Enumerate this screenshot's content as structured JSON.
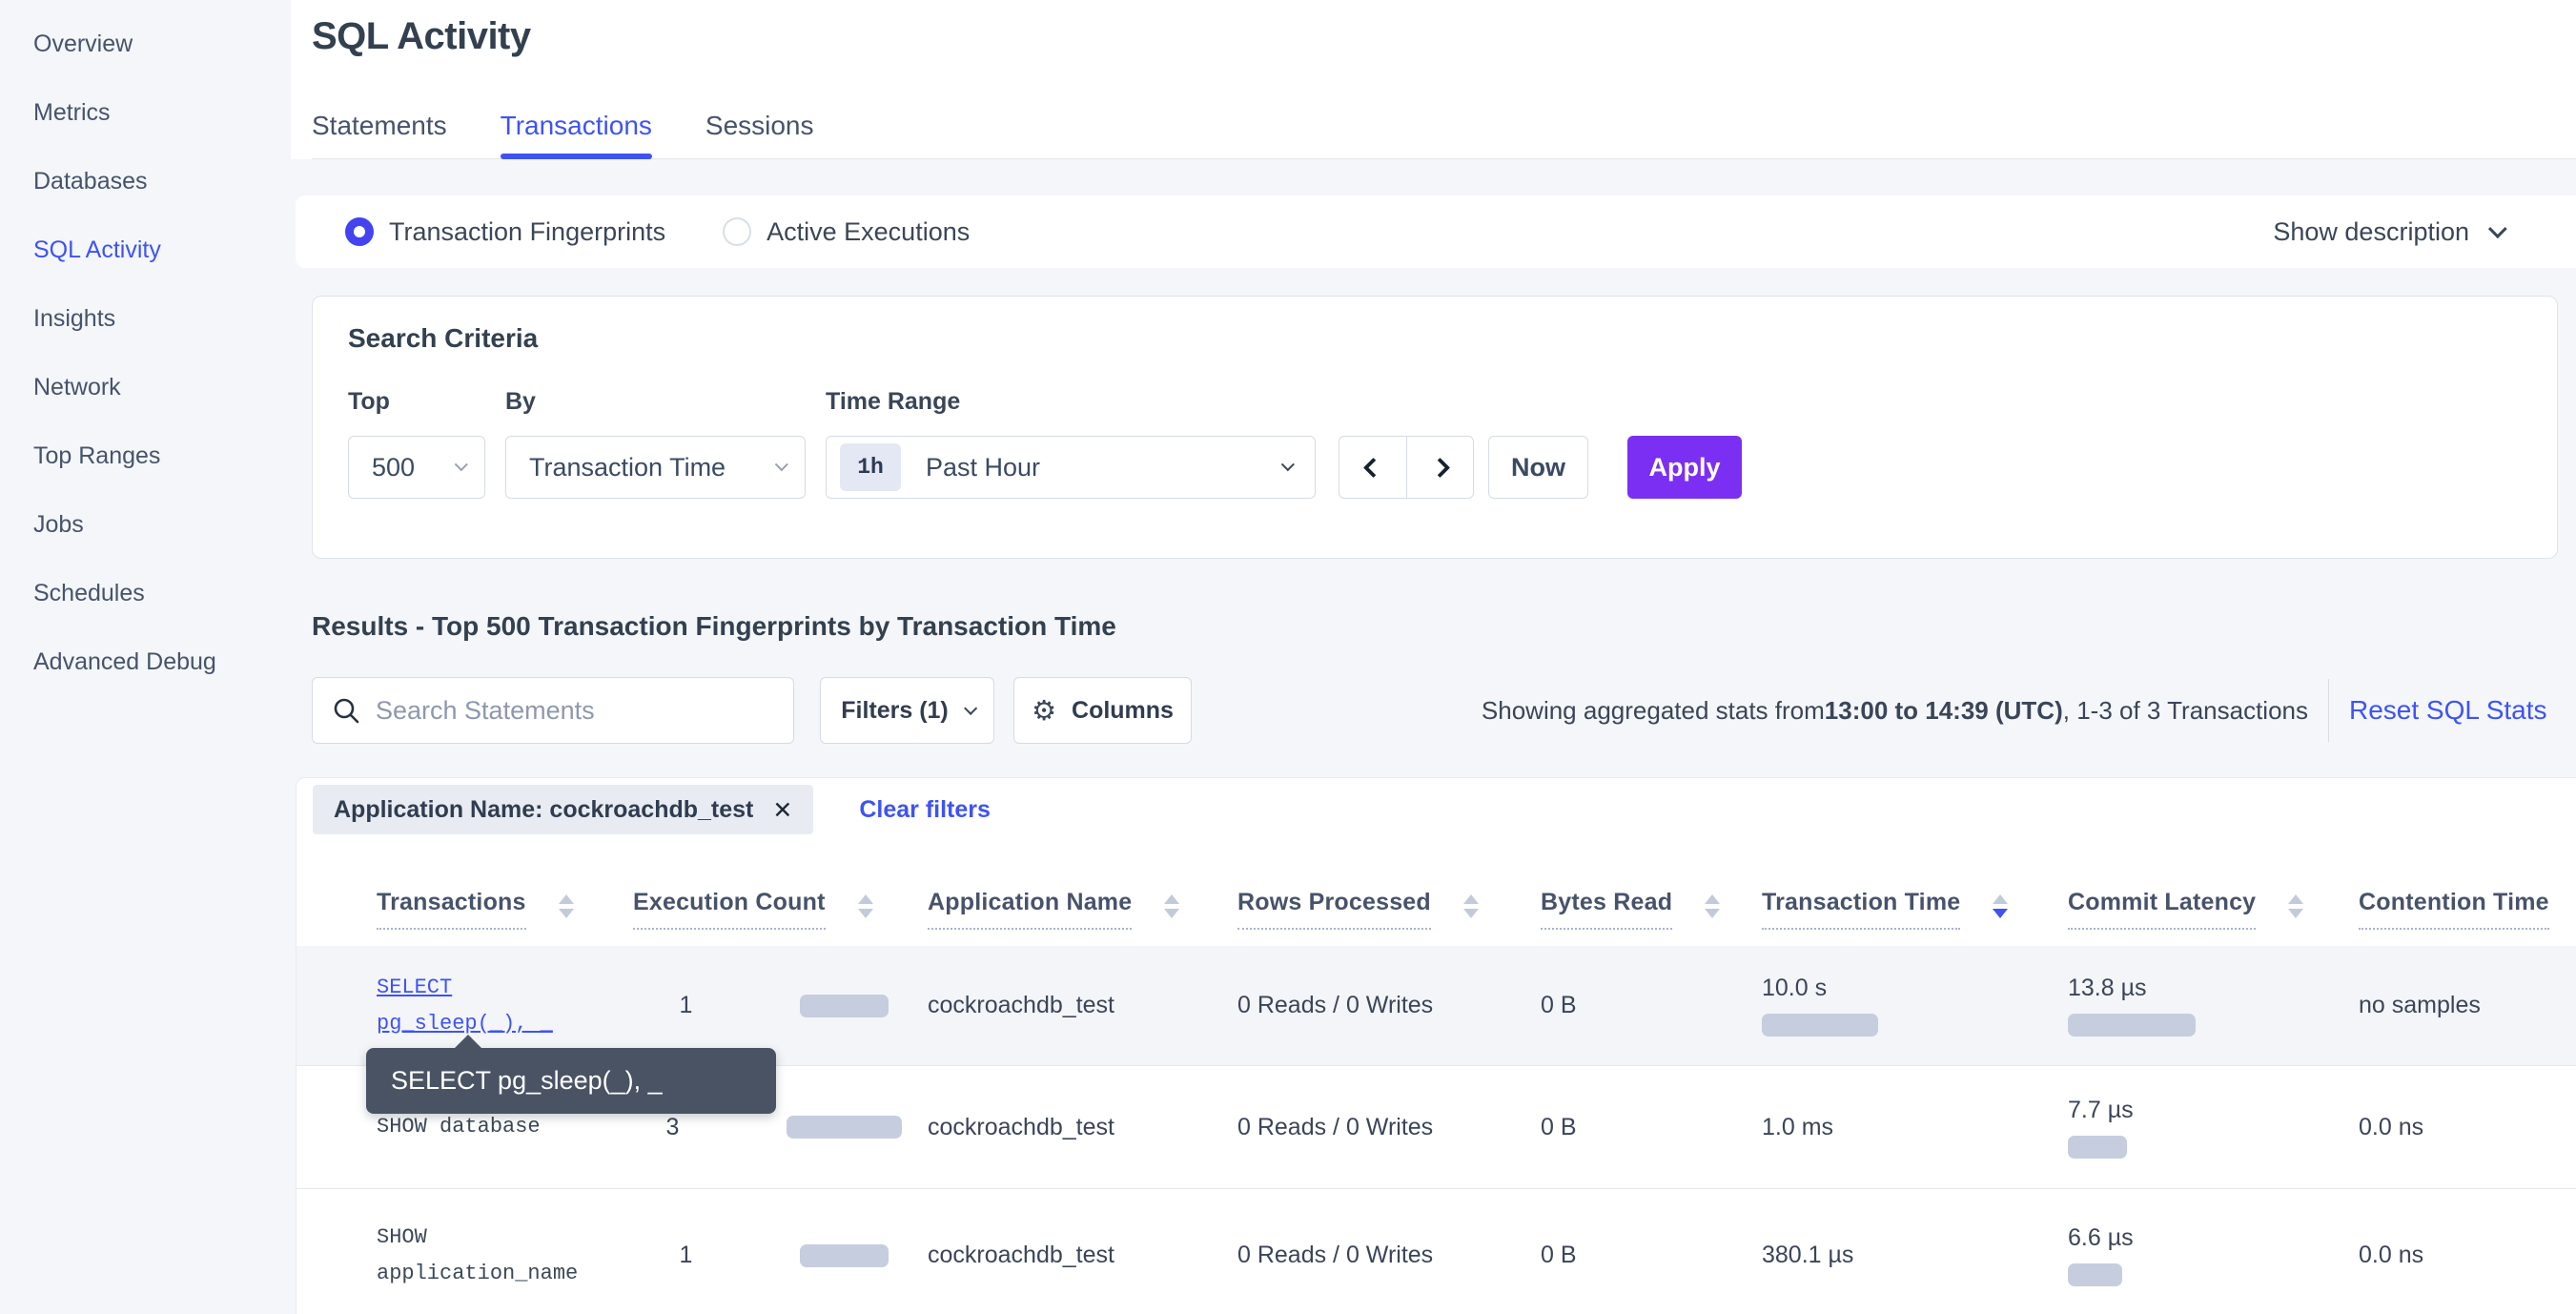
{
  "colors": {
    "accent": "#3e53f2",
    "purple": "#7b2ff2",
    "bar": "#c6cdde",
    "tooltip": "#4a5364"
  },
  "sidebar": {
    "items": [
      {
        "label": "Overview",
        "active": false
      },
      {
        "label": "Metrics",
        "active": false
      },
      {
        "label": "Databases",
        "active": false
      },
      {
        "label": "SQL Activity",
        "active": true
      },
      {
        "label": "Insights",
        "active": false
      },
      {
        "label": "Network",
        "active": false
      },
      {
        "label": "Top Ranges",
        "active": false
      },
      {
        "label": "Jobs",
        "active": false
      },
      {
        "label": "Schedules",
        "active": false
      },
      {
        "label": "Advanced Debug",
        "active": false
      }
    ]
  },
  "header": {
    "title": "SQL Activity",
    "tabs": [
      {
        "label": "Statements",
        "active": false
      },
      {
        "label": "Transactions",
        "active": true
      },
      {
        "label": "Sessions",
        "active": false
      }
    ]
  },
  "view_toggle": {
    "options": [
      {
        "label": "Transaction Fingerprints",
        "selected": true
      },
      {
        "label": "Active Executions",
        "selected": false
      }
    ],
    "show_description": "Show description"
  },
  "search_criteria": {
    "heading": "Search Criteria",
    "top": {
      "label": "Top",
      "value": "500"
    },
    "by": {
      "label": "By",
      "value": "Transaction Time"
    },
    "time_range": {
      "label": "Time Range",
      "badge": "1h",
      "value": "Past Hour"
    },
    "now_label": "Now",
    "apply_label": "Apply"
  },
  "results": {
    "heading": "Results - Top 500 Transaction Fingerprints by Transaction Time",
    "search_placeholder": "Search Statements",
    "filters_label": "Filters (1)",
    "columns_label": "Columns",
    "status_prefix": "Showing aggregated stats from ",
    "status_bold": "13:00 to 14:39 (UTC)",
    "status_suffix": ", 1-3 of 3 Transactions",
    "reset_label": "Reset SQL Stats",
    "filter_chip": "Application Name: cockroachdb_test",
    "clear_filters": "Clear filters"
  },
  "tooltip": {
    "text": "SELECT pg_sleep(_), _"
  },
  "table": {
    "columns": [
      {
        "label": "Transactions",
        "sort": "none"
      },
      {
        "label": "Execution Count",
        "sort": "none"
      },
      {
        "label": "Application Name",
        "sort": "none"
      },
      {
        "label": "Rows Processed",
        "sort": "none"
      },
      {
        "label": "Bytes Read",
        "sort": "none"
      },
      {
        "label": "Transaction Time",
        "sort": "desc"
      },
      {
        "label": "Commit Latency",
        "sort": "none"
      },
      {
        "label": "Contention Time",
        "sort": "none"
      }
    ],
    "rows": [
      {
        "statement_lines": [
          "SELECT",
          "pg_sleep(_), _"
        ],
        "is_link": true,
        "highlighted": true,
        "height": 126,
        "execution_count": "1",
        "exec_bar": 93,
        "application_name": "cockroachdb_test",
        "rows_processed": "0 Reads / 0 Writes",
        "bytes_read": "0 B",
        "transaction_time": "10.0 s",
        "txn_bar": 122,
        "commit_latency": "13.8 µs",
        "commit_bar": 134,
        "contention_time": "no samples"
      },
      {
        "statement_lines": [
          "SHOW database"
        ],
        "is_link": false,
        "highlighted": false,
        "height": 129,
        "execution_count": "3",
        "exec_bar": 121,
        "application_name": "cockroachdb_test",
        "rows_processed": "0 Reads / 0 Writes",
        "bytes_read": "0 B",
        "transaction_time": "1.0 ms",
        "txn_bar": 0,
        "commit_latency": "7.7 µs",
        "commit_bar": 62,
        "contention_time": "0.0 ns"
      },
      {
        "statement_lines": [
          "SHOW",
          "application_name"
        ],
        "is_link": false,
        "highlighted": false,
        "height": 140,
        "execution_count": "1",
        "exec_bar": 93,
        "application_name": "cockroachdb_test",
        "rows_processed": "0 Reads / 0 Writes",
        "bytes_read": "0 B",
        "transaction_time": "380.1 µs",
        "txn_bar": 0,
        "commit_latency": "6.6 µs",
        "commit_bar": 57,
        "contention_time": "0.0 ns"
      }
    ]
  }
}
